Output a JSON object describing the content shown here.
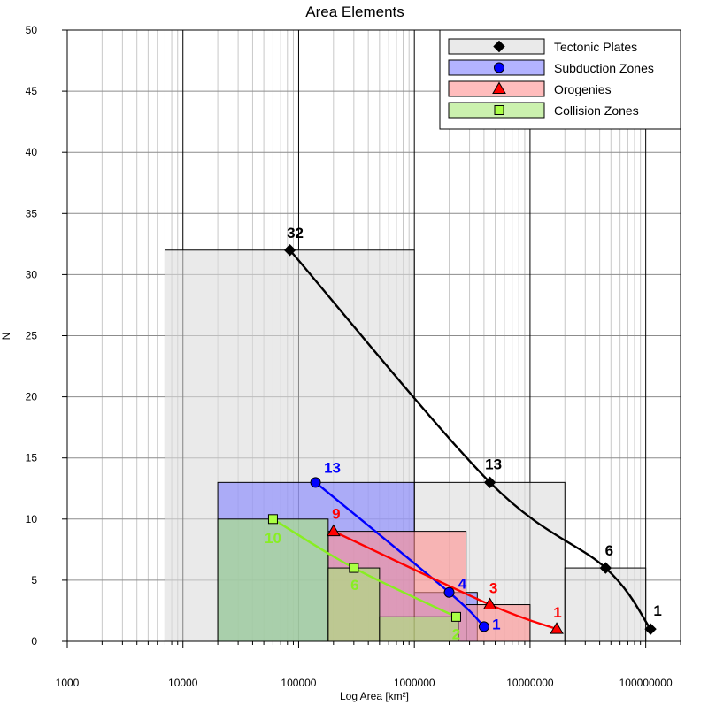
{
  "chart_data": {
    "type": "bar",
    "title": "Area Elements",
    "xlabel": "Log Area [km²]",
    "ylabel": "N",
    "xscale": "log",
    "xlim": [
      1000,
      200000000
    ],
    "ylim": [
      0,
      50
    ],
    "x_ticks": [
      1000,
      10000,
      100000,
      1000000,
      10000000,
      100000000
    ],
    "x_tick_labels": [
      "1000",
      "10000",
      "100000",
      "1000000",
      "10000000",
      "100000000"
    ],
    "y_ticks": [
      0,
      5,
      10,
      15,
      20,
      25,
      30,
      35,
      40,
      45,
      50
    ],
    "grid": true,
    "legend_position": "top-right",
    "series": [
      {
        "name": "Tectonic Plates",
        "fill": "#dcdcdc",
        "line": "#000000",
        "marker": "diamond",
        "bins": [
          {
            "x0": 7000,
            "x1": 1000000,
            "n": 32
          },
          {
            "x0": 1000000,
            "x1": 20000000,
            "n": 13
          },
          {
            "x0": 20000000,
            "x1": 100000000,
            "n": 6
          }
        ],
        "points": [
          {
            "x": 84000,
            "n": 32,
            "label": "32"
          },
          {
            "x": 4500000,
            "n": 13,
            "label": "13"
          },
          {
            "x": 45000000,
            "n": 6,
            "label": "6"
          },
          {
            "x": 110000000,
            "n": 1,
            "label": "1"
          }
        ]
      },
      {
        "name": "Subduction Zones",
        "fill": "#8080ff",
        "line": "#0000ff",
        "marker": "circle",
        "bins": [
          {
            "x0": 20000,
            "x1": 1000000,
            "n": 13
          },
          {
            "x0": 1000000,
            "x1": 3500000,
            "n": 4
          }
        ],
        "points": [
          {
            "x": 140000,
            "n": 13,
            "label": "13"
          },
          {
            "x": 2000000,
            "n": 4,
            "label": "4"
          },
          {
            "x": 4000000,
            "n": 1.2,
            "label": "1"
          }
        ]
      },
      {
        "name": "Orogenies",
        "fill": "#ff9090",
        "line": "#ff0000",
        "marker": "triangle",
        "bins": [
          {
            "x0": 180000,
            "x1": 2800000,
            "n": 9
          },
          {
            "x0": 2800000,
            "x1": 10000000,
            "n": 3
          }
        ],
        "points": [
          {
            "x": 200000,
            "n": 9,
            "label": "9"
          },
          {
            "x": 4500000,
            "n": 3,
            "label": "3"
          },
          {
            "x": 17000000,
            "n": 1,
            "label": "1"
          }
        ]
      },
      {
        "name": "Collision Zones",
        "fill": "#a8e878",
        "line": "#88ee22",
        "marker": "square",
        "bins": [
          {
            "x0": 20000,
            "x1": 180000,
            "n": 10
          },
          {
            "x0": 180000,
            "x1": 500000,
            "n": 6
          },
          {
            "x0": 500000,
            "x1": 2400000,
            "n": 2
          }
        ],
        "points": [
          {
            "x": 60000,
            "n": 10,
            "label": "10"
          },
          {
            "x": 300000,
            "n": 6,
            "label": "6"
          },
          {
            "x": 2300000,
            "n": 2,
            "label": "2"
          }
        ]
      }
    ]
  }
}
